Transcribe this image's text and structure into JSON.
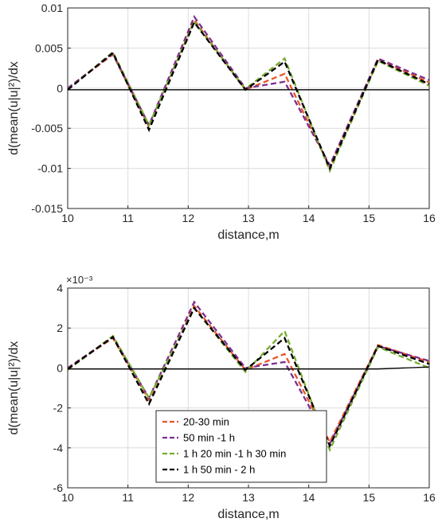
{
  "chart_data": [
    {
      "type": "line",
      "title": "",
      "xlabel": "distance,m",
      "ylabel": "d(mean(u|u|²)/dx",
      "xlim": [
        10,
        16
      ],
      "ylim": [
        -0.015,
        0.01
      ],
      "x_ticks": [
        "10",
        "11",
        "12",
        "13",
        "14",
        "15",
        "16"
      ],
      "y_ticks": [
        "-0.015",
        "-0.01",
        "-0.005",
        "0",
        "0.005",
        "0.01"
      ],
      "grid": true,
      "exponent_label": "",
      "x": [
        10.0,
        10.75,
        11.35,
        12.1,
        12.95,
        13.6,
        14.35,
        15.15,
        16.0
      ],
      "series": [
        {
          "color": "#e8562a",
          "style": "dashed",
          "values": [
            0.0,
            0.0042,
            -0.0048,
            0.0085,
            -0.0002,
            0.0018,
            -0.0098,
            0.0036,
            0.0007
          ]
        },
        {
          "color": "#7e2f8e",
          "style": "dashed",
          "values": [
            0.0,
            0.0043,
            -0.0046,
            0.0089,
            0.0,
            0.0008,
            -0.0096,
            0.0037,
            0.001
          ]
        },
        {
          "color": "#77ac30",
          "style": "dashed",
          "values": [
            -0.0002,
            0.0045,
            -0.0046,
            0.0083,
            -0.0001,
            0.0037,
            -0.0103,
            0.0034,
            0.0003
          ]
        },
        {
          "color": "#000000",
          "style": "dashed",
          "values": [
            -0.0002,
            0.0044,
            -0.0052,
            0.0082,
            -0.0002,
            0.0033,
            -0.01,
            0.0035,
            0.0005
          ]
        },
        {
          "color": "#000000",
          "style": "solid",
          "values": [
            -0.0002,
            -0.0002,
            -0.0002,
            -0.0002,
            -0.0002,
            -0.0002,
            -0.0002,
            -0.0002,
            -0.0002
          ]
        }
      ]
    },
    {
      "type": "line",
      "title": "",
      "xlabel": "distance,m",
      "ylabel": "d(mean(u|u|²)/dx",
      "xlim": [
        10,
        16
      ],
      "ylim": [
        -6,
        4
      ],
      "x_ticks": [
        "10",
        "11",
        "12",
        "13",
        "14",
        "15",
        "16"
      ],
      "y_ticks": [
        "-6",
        "-4",
        "-2",
        "0",
        "2",
        "4"
      ],
      "grid": true,
      "exponent_label": "×10⁻³",
      "legend_position": "lower-left",
      "x": [
        10.0,
        10.75,
        11.35,
        12.1,
        12.95,
        13.6,
        14.35,
        15.15,
        16.0
      ],
      "series": [
        {
          "name": "20-30 min",
          "color": "#e8562a",
          "style": "dashed",
          "values": [
            0.0,
            1.5,
            -1.6,
            3.1,
            -0.1,
            0.7,
            -3.7,
            1.15,
            0.3
          ]
        },
        {
          "name": "50 min -1 h",
          "color": "#7e2f8e",
          "style": "dashed",
          "values": [
            0.0,
            1.55,
            -1.5,
            3.3,
            0.0,
            0.3,
            -3.8,
            1.1,
            0.35
          ]
        },
        {
          "name": "1 h 20 min -1 h 30 min",
          "color": "#77ac30",
          "style": "dashed",
          "values": [
            -0.1,
            1.6,
            -1.5,
            3.0,
            -0.2,
            1.85,
            -4.1,
            1.05,
            0.0
          ]
        },
        {
          "name": "1 h 50 min - 2 h",
          "color": "#000000",
          "style": "dashed",
          "values": [
            -0.05,
            1.55,
            -1.8,
            3.0,
            -0.1,
            1.5,
            -3.9,
            1.1,
            0.2
          ]
        },
        {
          "color": "#000000",
          "style": "solid",
          "values": [
            -0.05,
            -0.05,
            -0.05,
            -0.05,
            -0.05,
            -0.05,
            -0.05,
            -0.05,
            0.05
          ]
        }
      ]
    }
  ]
}
